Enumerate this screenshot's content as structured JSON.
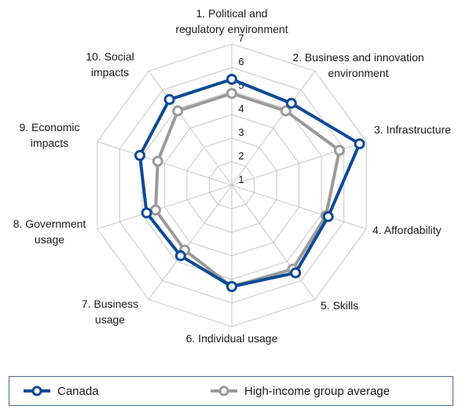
{
  "chart_data": {
    "type": "radar",
    "title": "",
    "rmin": 1,
    "rmax": 7,
    "ticks": [
      "1",
      "2",
      "3",
      "4",
      "5",
      "6",
      "7"
    ],
    "axes": [
      [
        "1. Political and",
        "regulatory environment"
      ],
      [
        "2. Business and innovation",
        "environment"
      ],
      [
        "3. Infrastructure"
      ],
      [
        "4. Affordability"
      ],
      [
        "5. Skills"
      ],
      [
        "6. Individual usage"
      ],
      [
        "7. Business",
        "usage"
      ],
      [
        "8. Government",
        "usage"
      ],
      [
        "9. Economic",
        "impacts"
      ],
      [
        "10. Social",
        "impacts"
      ]
    ],
    "series": [
      {
        "name": "Canada",
        "color": "#0b4a96",
        "values": [
          5.5,
          5.3,
          6.7,
          5.3,
          5.6,
          5.3,
          4.7,
          4.8,
          5.1,
          5.5
        ]
      },
      {
        "name": "High-income group average",
        "color": "#9a9a9a",
        "values": [
          4.9,
          4.9,
          5.8,
          5.2,
          5.4,
          5.3,
          4.4,
          4.4,
          4.3,
          4.9
        ]
      }
    ],
    "grid": true,
    "legend": "bottom"
  }
}
